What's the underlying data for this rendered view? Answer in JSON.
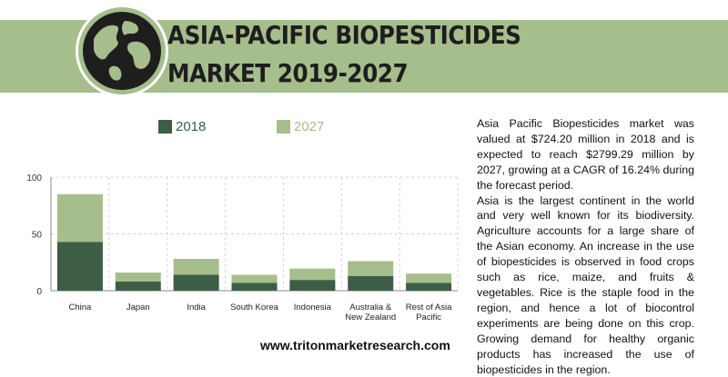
{
  "header": {
    "title_line1": "ASIA-PACIFIC BIOPESTICIDES",
    "title_line2": "MARKET  2019-2027",
    "globe_icon": "globe-icon",
    "colors": {
      "banner": "#a6bd8c",
      "globe": "#1e1e1e"
    }
  },
  "legend": [
    {
      "label": "2018",
      "color": "#3d5d47"
    },
    {
      "label": "2027",
      "color": "#a6bd8c"
    }
  ],
  "chart_data": {
    "type": "bar",
    "stacked": true,
    "categories": [
      "China",
      "Japan",
      "India",
      "South Korea",
      "Indonesia",
      "Australia & New Zealand",
      "Rest of Asia Pacific"
    ],
    "category_lines": [
      [
        "China"
      ],
      [
        "Japan"
      ],
      [
        "India"
      ],
      [
        "South Korea"
      ],
      [
        "Indonesia"
      ],
      [
        "Australia &",
        "New Zealand"
      ],
      [
        "Rest of Asia",
        "Pacific"
      ]
    ],
    "series": [
      {
        "name": "2018",
        "color": "#3d5d47",
        "values": [
          43,
          8,
          14,
          7,
          9.5,
          13,
          7
        ]
      },
      {
        "name": "2027",
        "color": "#a6bd8c",
        "values": [
          42,
          8,
          14,
          7,
          10,
          13,
          8
        ]
      }
    ],
    "ylim": [
      0,
      100
    ],
    "yticks": [
      0,
      50,
      100
    ],
    "grid": true,
    "legend_position": "top"
  },
  "description": {
    "paragraph1": "Asia Pacific Biopesticides market was valued at $724.20 million in 2018 and is expected to reach $2799.29 million by 2027, growing at a CAGR of 16.24% during the forecast period.",
    "paragraph2": "Asia is the largest continent in the world and very well known for its biodiversity. Agriculture accounts for a large share of the Asian economy. An increase in the use of biopesticides is observed in food crops such as rice, maize, and fruits & vegetables. Rice is the staple food in the region, and hence a lot of biocontrol experiments are being done on this crop. Growing demand for healthy organic products has increased the use of biopesticides in the region."
  },
  "footer": {
    "url": "www.tritonmarketresearch.com"
  }
}
